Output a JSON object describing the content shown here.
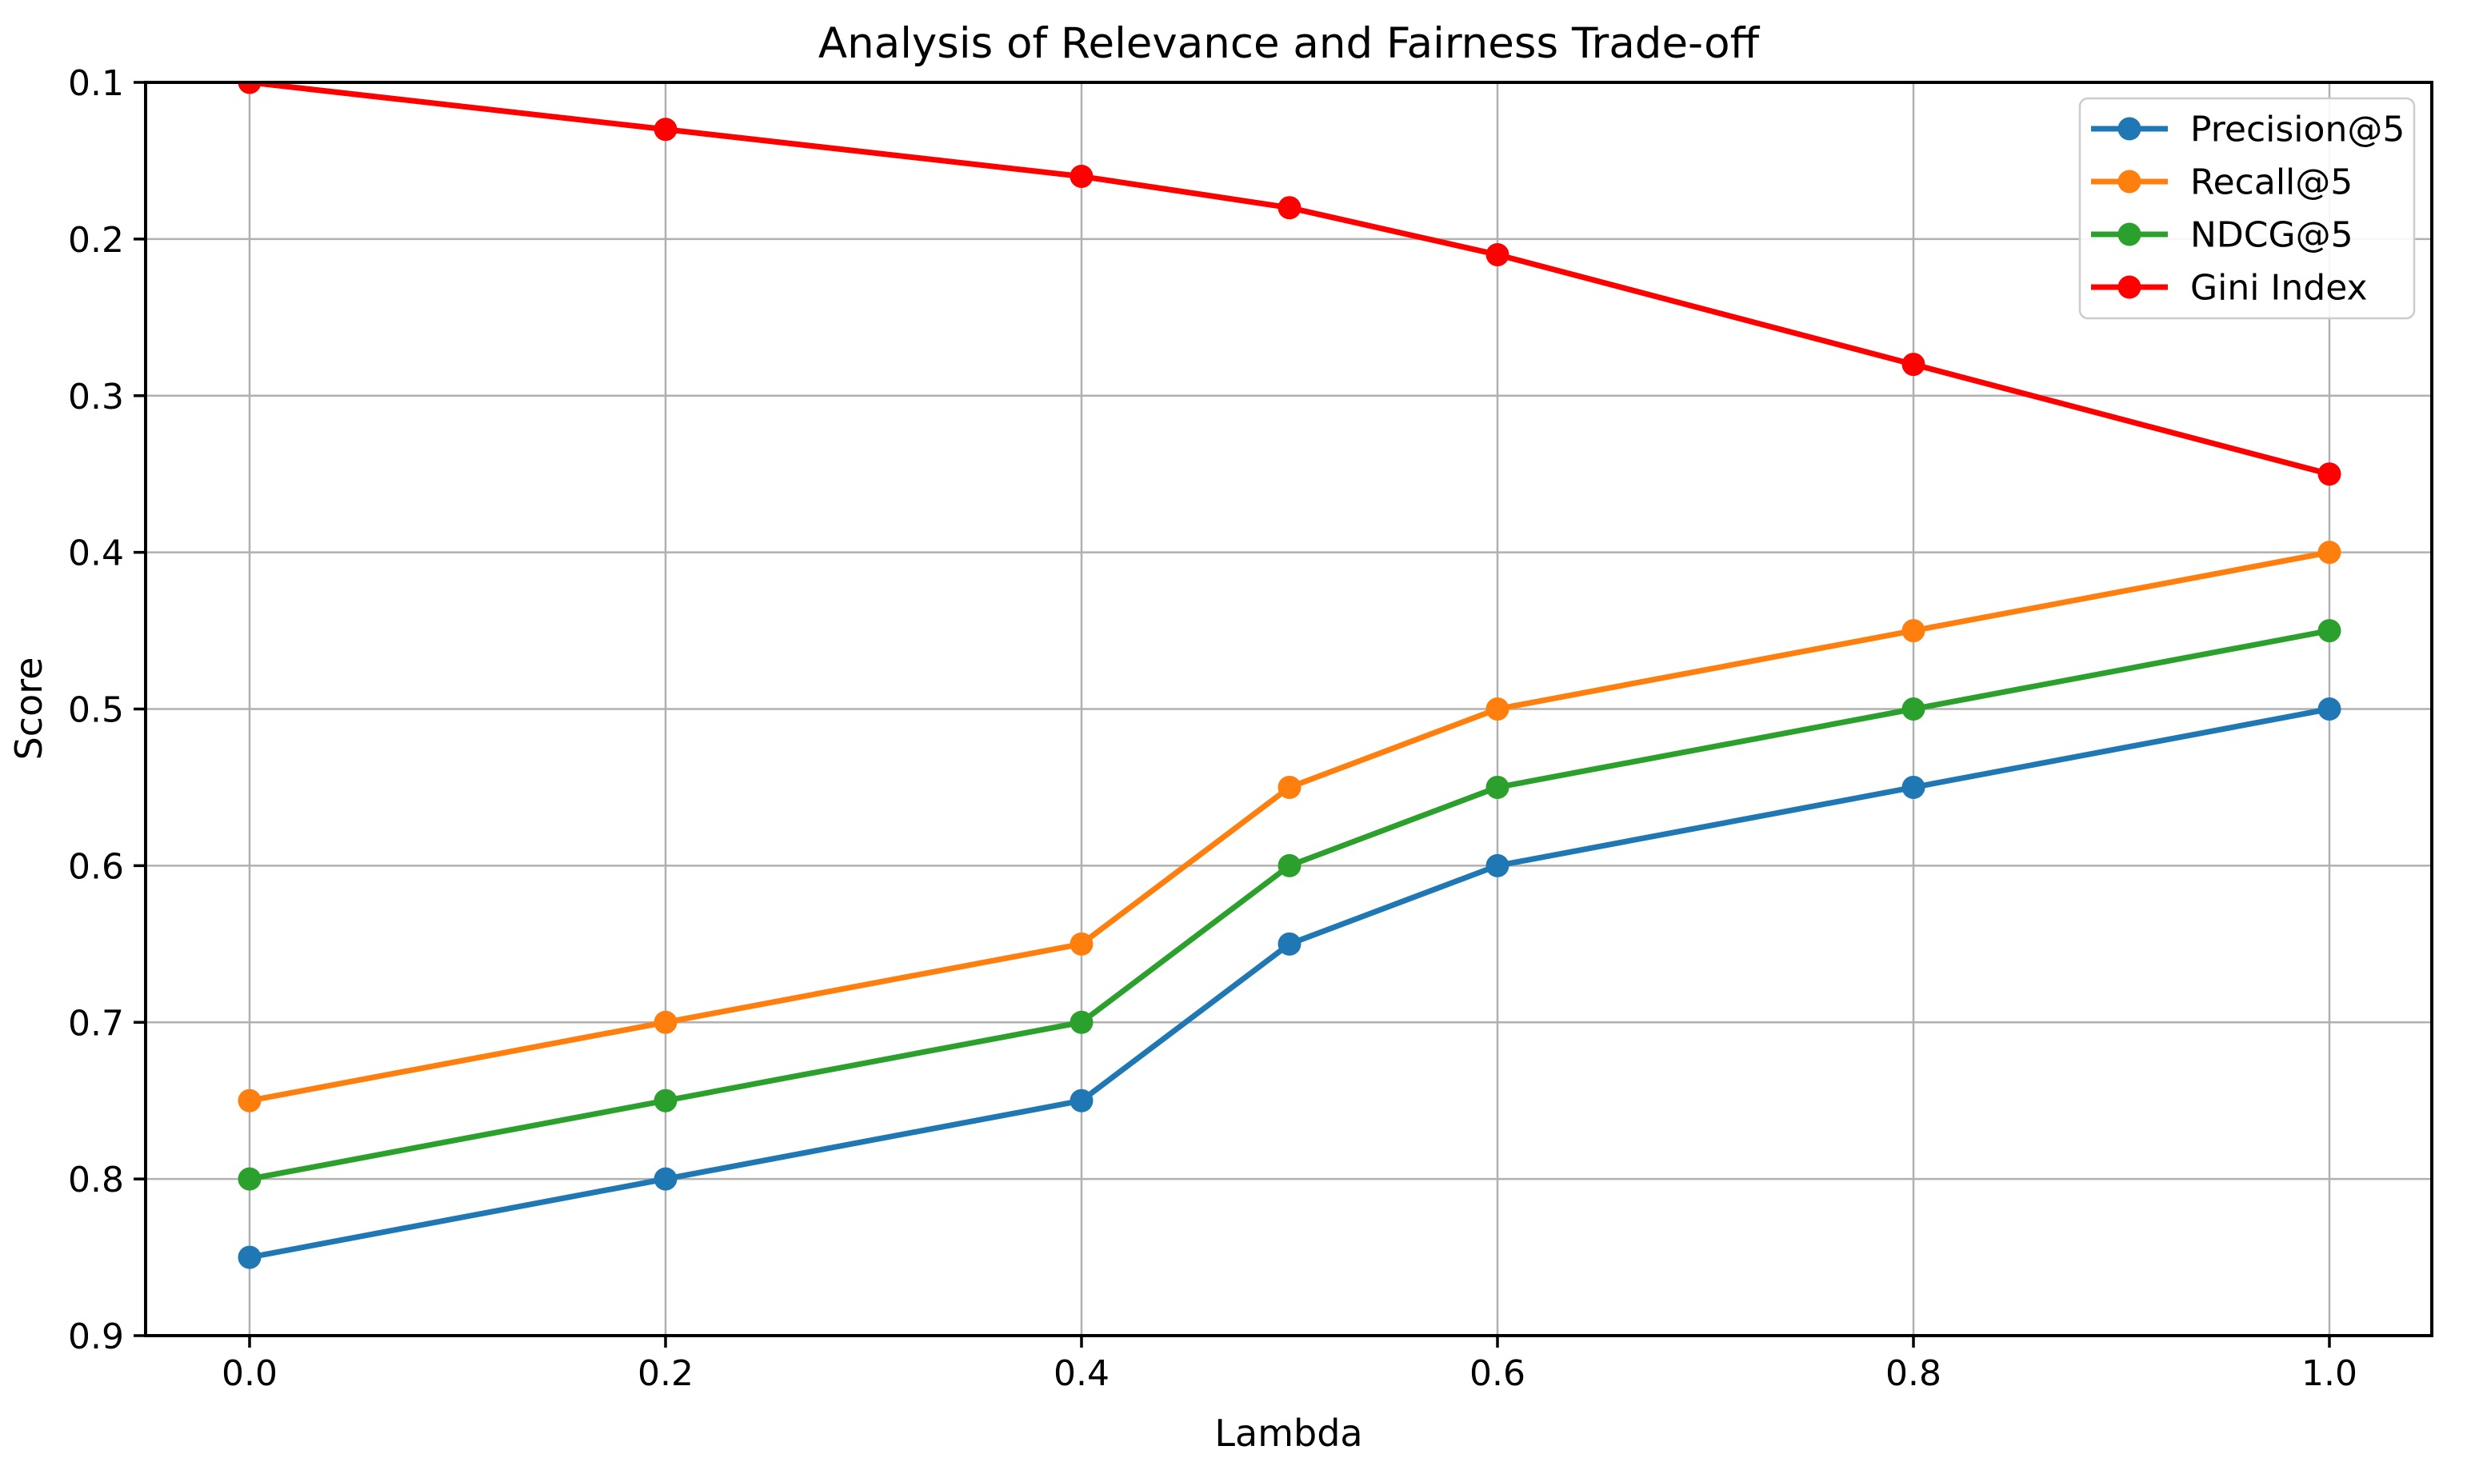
{
  "chart_data": {
    "type": "line",
    "title": "Analysis of Relevance and Fairness Trade-off",
    "xlabel": "Lambda",
    "ylabel": "Score",
    "x": [
      0.0,
      0.2,
      0.4,
      0.5,
      0.6,
      0.8,
      1.0
    ],
    "series": [
      {
        "name": "Precision@5",
        "color": "#1f77b4",
        "values": [
          0.85,
          0.8,
          0.75,
          0.65,
          0.6,
          0.55,
          0.5
        ]
      },
      {
        "name": "Recall@5",
        "color": "#ff7f0e",
        "values": [
          0.75,
          0.7,
          0.65,
          0.55,
          0.5,
          0.45,
          0.4
        ]
      },
      {
        "name": "NDCG@5",
        "color": "#2ca02c",
        "values": [
          0.8,
          0.75,
          0.7,
          0.6,
          0.55,
          0.5,
          0.45
        ]
      },
      {
        "name": "Gini Index",
        "color": "#ff0000",
        "values": [
          0.1,
          0.13,
          0.16,
          0.18,
          0.21,
          0.28,
          0.35
        ]
      }
    ],
    "x_ticks": {
      "values": [
        0.0,
        0.2,
        0.4,
        0.6,
        0.8,
        1.0
      ],
      "labels": [
        "0.0",
        "0.2",
        "0.4",
        "0.6",
        "0.8",
        "1.0"
      ]
    },
    "y_ticks": {
      "values": [
        0.1,
        0.2,
        0.3,
        0.4,
        0.5,
        0.6,
        0.7,
        0.8,
        0.9
      ],
      "labels": [
        "0.1",
        "0.2",
        "0.3",
        "0.4",
        "0.5",
        "0.6",
        "0.7",
        "0.8",
        "0.9"
      ]
    },
    "xlim": [
      -0.05,
      1.05
    ],
    "ylim": [
      0.1,
      0.9
    ],
    "y_axis_inverted": true,
    "grid": true,
    "grid_color": "#b0b0b0",
    "spine_color": "#000000",
    "marker": "circle",
    "legend_position": "upper right",
    "legend": [
      "Precision@5",
      "Recall@5",
      "NDCG@5",
      "Gini Index"
    ]
  }
}
